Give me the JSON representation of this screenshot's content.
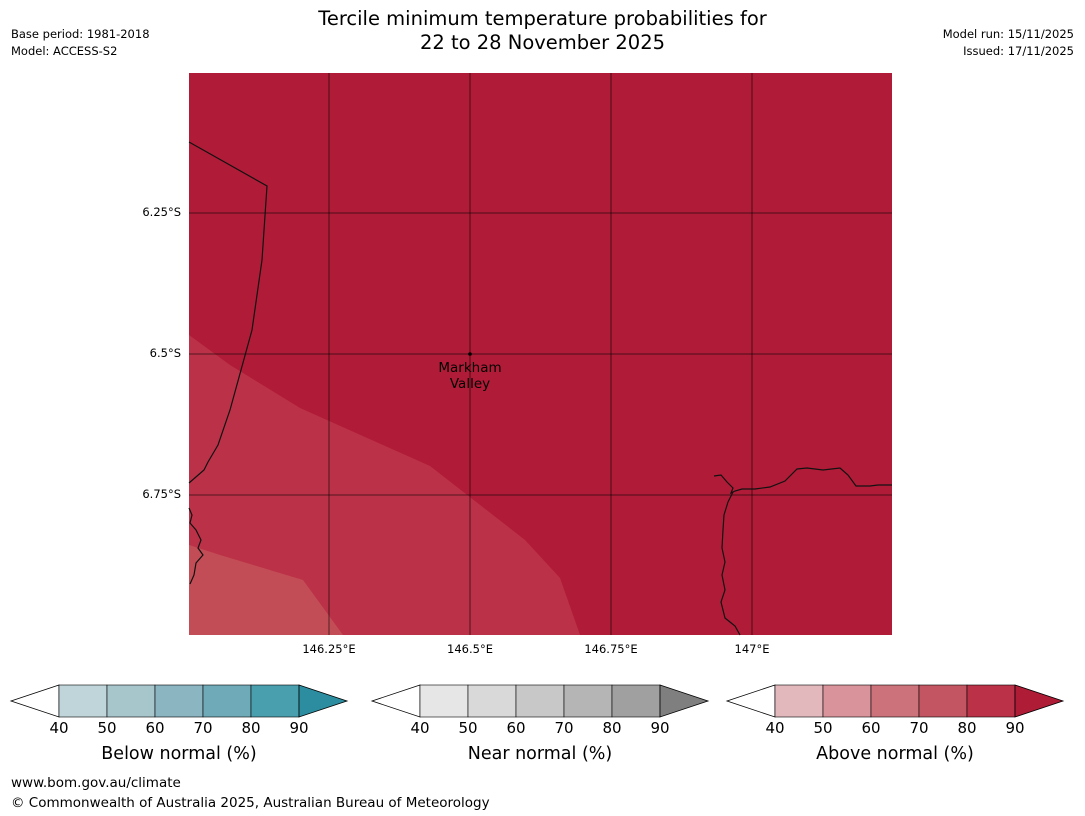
{
  "title": {
    "line1": "Tercile minimum temperature probabilities for",
    "line2": "22 to 28 November 2025"
  },
  "meta_left": {
    "base_period": "Base period: 1981-2018",
    "model": "Model: ACCESS-S2"
  },
  "meta_right": {
    "model_run": "Model run: 15/11/2025",
    "issued": "Issued: 17/11/2025"
  },
  "map": {
    "latitude_labels": [
      "6.25°S",
      "6.5°S",
      "6.75°S"
    ],
    "longitude_labels": [
      "146.25°E",
      "146.5°E",
      "146.75°E",
      "147°E"
    ],
    "place": {
      "line1": "Markham",
      "line2": "Valley"
    },
    "colors": {
      "above_90": "#b01c37",
      "above_80": "#bb3248",
      "above_70": "#c34d56"
    }
  },
  "colorbars": [
    {
      "label": "Below normal (%)",
      "ticks": [
        "40",
        "50",
        "60",
        "70",
        "80",
        "90"
      ],
      "colors": [
        "#bfd5da",
        "#a7c6cc",
        "#8ab5c1",
        "#6eaab8",
        "#4a9fae",
        "#2b8d9f"
      ]
    },
    {
      "label": "Near normal (%)",
      "ticks": [
        "40",
        "50",
        "60",
        "70",
        "80",
        "90"
      ],
      "colors": [
        "#e6e6e6",
        "#d9d9d9",
        "#c8c8c8",
        "#b5b5b5",
        "#a0a0a0",
        "#7f7f7f"
      ]
    },
    {
      "label": "Above normal (%)",
      "ticks": [
        "40",
        "50",
        "60",
        "70",
        "80",
        "90"
      ],
      "colors": [
        "#e2b8bd",
        "#d8939b",
        "#cc727a",
        "#c35562",
        "#bb3248",
        "#ae1c35"
      ]
    }
  ],
  "footer": {
    "url": "www.bom.gov.au/climate",
    "copyright": "© Commonwealth of Australia 2025, Australian Bureau of Meteorology"
  }
}
